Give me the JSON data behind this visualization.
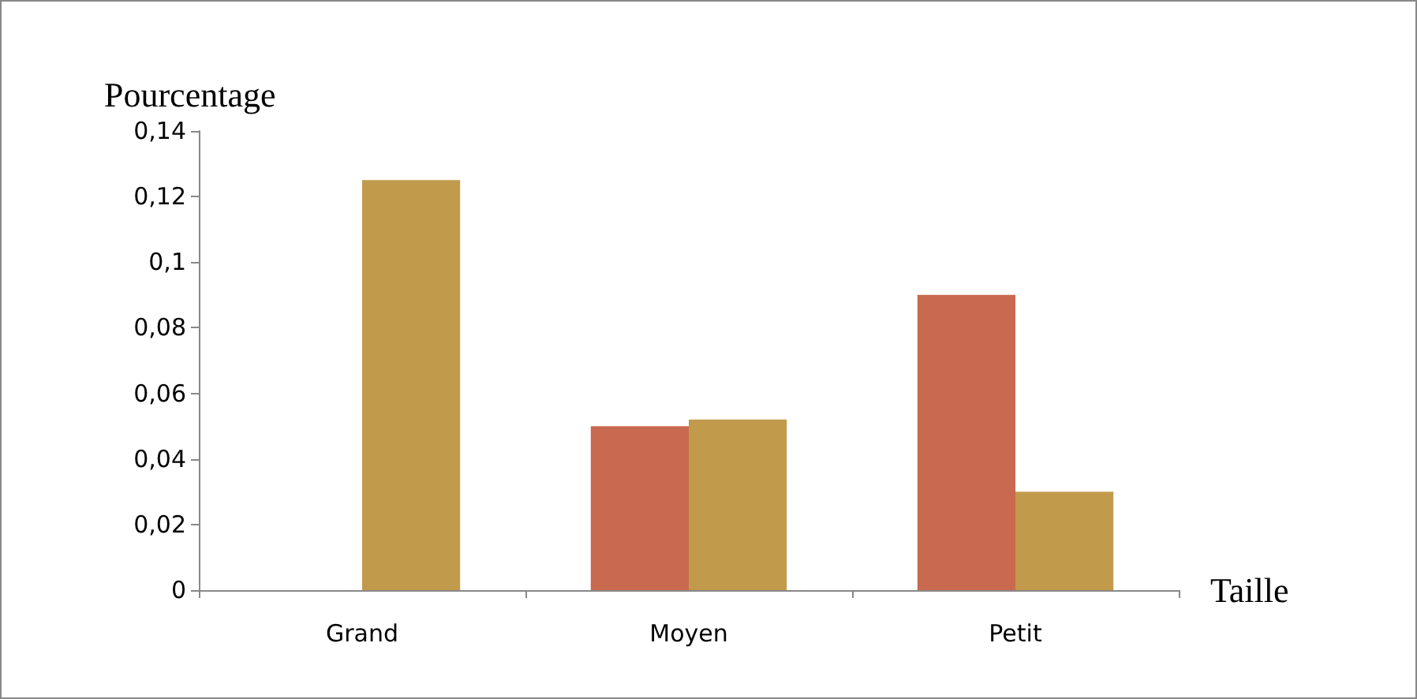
{
  "chart_data": {
    "type": "bar",
    "ylabel": "Pourcentage",
    "xlabel": "Taille",
    "categories": [
      "Grand",
      "Moyen",
      "Petit"
    ],
    "series": [
      {
        "color": "#c9694f",
        "values": [
          0,
          0.05,
          0.09
        ]
      },
      {
        "color": "#c19a4b",
        "values": [
          0.125,
          0.052,
          0.03
        ]
      }
    ],
    "ylim": [
      0,
      0.14
    ],
    "yticks": [
      0,
      {
        "value": 0.02,
        "label": "0,02"
      },
      {
        "value": 0.04,
        "label": "0,04"
      },
      {
        "value": 0.06,
        "label": "0,06"
      },
      {
        "value": 0.08,
        "label": "0,08"
      },
      {
        "value": 0.1,
        "label": "0,1"
      },
      {
        "value": 0.12,
        "label": "0,12"
      },
      {
        "value": 0.14,
        "label": "0,14"
      }
    ],
    "grid": false
  }
}
